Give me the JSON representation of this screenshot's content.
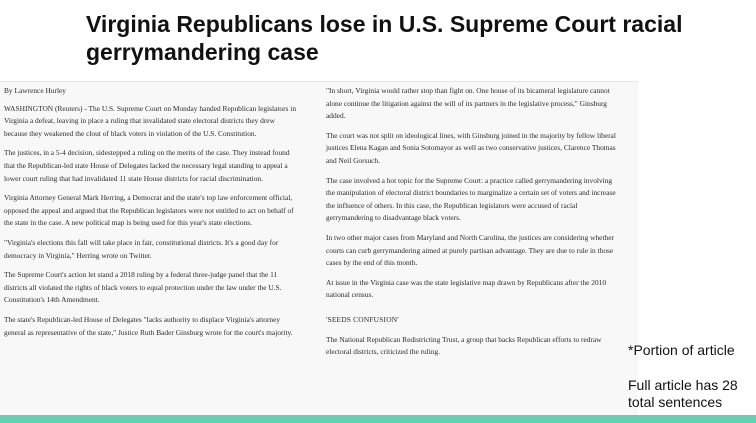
{
  "title": "Virginia Republicans lose in U.S. Supreme Court racial gerrymandering case",
  "article": {
    "byline": "By Lawrence Hurley",
    "left_paragraphs": [
      "WASHINGTON (Reuters) - The U.S. Supreme Court on Monday handed Republican legislators in Virginia a defeat, leaving in place a ruling that invalidated state electoral districts they drew because they weakened the clout of black voters in violation of the U.S. Constitution.",
      "The justices, in a 5-4 decision, sidestepped a ruling on the merits of the case. They instead found that the Republican-led state House of Delegates lacked the necessary legal standing to appeal a lower court ruling that had invalidated 11 state House districts for racial discrimination.",
      "Virginia Attorney General Mark Herring, a Democrat and the state's top law enforcement official, opposed the appeal and argued that the Republican legislators were not entitled to act on behalf of the state in the case. A new political map is being used for this year's state elections.",
      "\"Virginia's elections this fall will take place in fair, constitutional districts. It's a good day for democracy in Virginia,\" Herring wrote on Twitter.",
      "The Supreme Court's action let stand a 2018 ruling by a federal three-judge panel that the 11 districts all violated the rights of black voters to equal protection under the law under the U.S. Constitution's 14th Amendment.",
      "The state's Republican-led House of Delegates \"lacks authority to displace Virginia's attorney general as representative of the state,\" Justice Ruth Bader Ginsburg wrote for the court's majority."
    ],
    "right_paragraphs": [
      "\"In short, Virginia would rather stop than fight on. One house of its bicameral legislature cannot alone continue the litigation against the will of its partners in the legislative process,\" Ginsburg added.",
      "The court was not split on ideological lines, with Ginsburg joined in the majority by fellow liberal justices Elena Kagan and Sonia Sotomayor as well as two conservative justices, Clarence Thomas and Neil Gorsuch.",
      "The case involved a hot topic for the Supreme Court: a practice called gerrymandering involving the manipulation of electoral district boundaries to marginalize a certain set of voters and increase the influence of others. In this case, the Republican legislators were accused of racial gerrymandering to disadvantage black voters.",
      "In two other major cases from Maryland and North Carolina, the justices are considering whether courts can curb gerrymandering aimed at purely partisan advantage. They are due to rule in those cases by the end of this month.",
      "At issue in the Virginia case was the state legislative map drawn by Republicans after the 2010 national census."
    ],
    "section_heading": "'SEEDS CONFUSION'",
    "final_paragraph": "The National Republican Redistricting Trust, a group that backs Republican efforts to redraw electoral districts, criticized the ruling."
  },
  "notes": {
    "portion": "*Portion of article",
    "full": "Full article has 28 total sentences"
  },
  "colors": {
    "accent_bar": "#5fd3b2",
    "article_background": "#f8f8f8"
  }
}
